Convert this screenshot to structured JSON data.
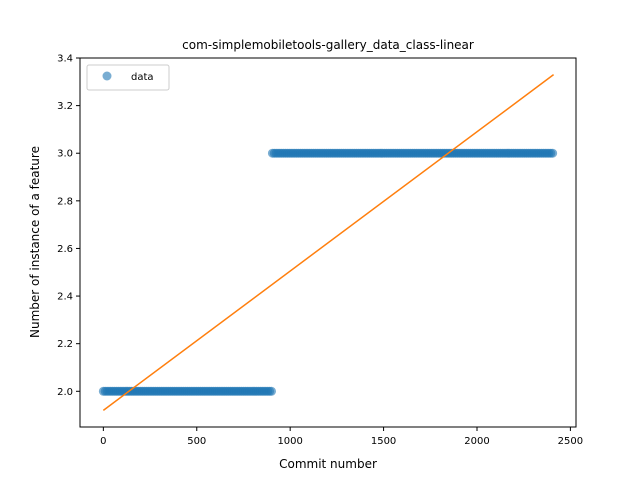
{
  "chart_data": {
    "type": "scatter",
    "title": "com-simplemobiletools-gallery_data_class-linear",
    "xlabel": "Commit number",
    "ylabel": "Number of instance of a feature",
    "xlim": [
      -125,
      2530
    ],
    "ylim": [
      1.85,
      3.4
    ],
    "xticks": [
      0,
      500,
      1000,
      1500,
      2000,
      2500
    ],
    "yticks": [
      2.0,
      2.2,
      2.4,
      2.6,
      2.8,
      3.0,
      3.2,
      3.4
    ],
    "ytick_labels": [
      "2.0",
      "2.2",
      "2.4",
      "2.6",
      "2.8",
      "3.0",
      "3.2",
      "3.4"
    ],
    "grid": false,
    "legend": {
      "position": "upper-left",
      "entries": [
        "data"
      ]
    },
    "series": [
      {
        "name": "data",
        "kind": "points",
        "color": "#1f77b4",
        "segments": [
          {
            "x_start": 0,
            "x_end": 900,
            "y": 2.0
          },
          {
            "x_start": 905,
            "x_end": 2410,
            "y": 3.0
          }
        ]
      },
      {
        "kind": "fit-line",
        "color": "#ff7f0e",
        "x": [
          0,
          2410
        ],
        "y": [
          1.92,
          3.33
        ]
      }
    ]
  }
}
